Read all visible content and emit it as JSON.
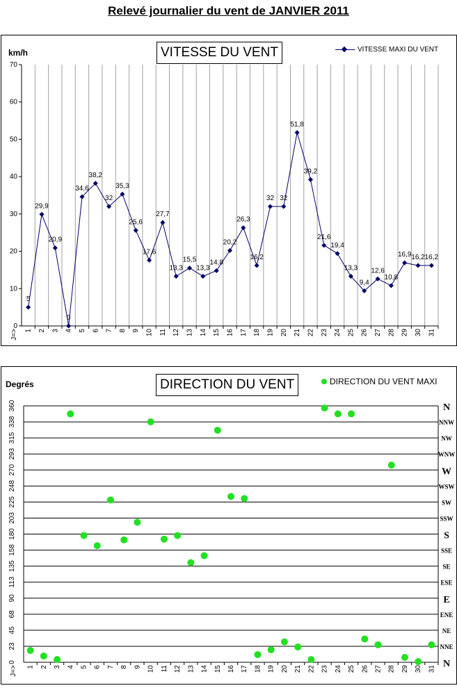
{
  "page": {
    "title": "Relevé journalier du vent de JANVIER 2011"
  },
  "speed_chart": {
    "title": "VITESSE DU VENT",
    "unit": "km/h",
    "legend": "VITESSE MAXI DU VENT",
    "x_axis_prefix": "J=>",
    "line_color": "#000066",
    "grid_color": "#a0a0a0"
  },
  "direction_chart": {
    "title": "DIRECTION DU VENT",
    "unit": "Degrés",
    "legend": "DIRECTION DU VENT MAXI",
    "x_axis_prefix": "J=>",
    "point_color": "#22e022",
    "grid_color": "#000000"
  },
  "chart_data": [
    {
      "type": "line",
      "title": "VITESSE DU VENT",
      "ylabel": "km/h",
      "xlabel": "J=>",
      "ylim": [
        0,
        70
      ],
      "yticks": [
        0,
        10,
        20,
        30,
        40,
        50,
        60,
        70
      ],
      "grid": "vertical",
      "legend_position": "top-right",
      "categories": [
        "1",
        "2",
        "3",
        "4",
        "5",
        "6",
        "7",
        "8",
        "9",
        "10",
        "11",
        "12",
        "13",
        "14",
        "15",
        "16",
        "17",
        "18",
        "19",
        "20",
        "21",
        "22",
        "23",
        "24",
        "25",
        "26",
        "27",
        "28",
        "29",
        "30",
        "31"
      ],
      "series": [
        {
          "name": "VITESSE MAXI DU VENT",
          "values": [
            5,
            29.9,
            20.9,
            0,
            34.6,
            38.2,
            32,
            35.3,
            25.6,
            17.6,
            27.7,
            13.3,
            15.5,
            13.3,
            14.8,
            20.2,
            26.3,
            16.2,
            32,
            32,
            51.8,
            39.2,
            21.6,
            19.4,
            13.3,
            9.4,
            12.6,
            10.8,
            16.9,
            16.2,
            16.2
          ],
          "labels": [
            "5",
            "29,9",
            "20,9",
            "0",
            "34,6",
            "38,2",
            "32",
            "35,3",
            "25,6",
            "17,6",
            "27,7",
            "13,3",
            "15,5",
            "13,3",
            "14,8",
            "20,2",
            "26,3",
            "16,2",
            "32",
            "32",
            "51,8",
            "39,2",
            "21,6",
            "19,4",
            "13,3",
            "9,4",
            "12,6",
            "10,8",
            "16,9",
            "16,2",
            "16,2"
          ]
        }
      ]
    },
    {
      "type": "scatter",
      "title": "DIRECTION DU VENT",
      "ylabel": "Degrés",
      "xlabel": "J=>",
      "ylim": [
        0,
        360
      ],
      "yticks": [
        0,
        23,
        45,
        68,
        90,
        113,
        135,
        158,
        180,
        203,
        225,
        248,
        270,
        293,
        315,
        338,
        360
      ],
      "direction_labels": [
        "N",
        "NNE",
        "NE",
        "ENE",
        "E",
        "ESE",
        "SE",
        "SSE",
        "S",
        "SSW",
        "SW",
        "WSW",
        "W",
        "WNW",
        "NW",
        "NNW",
        "N"
      ],
      "grid": "horizontal",
      "legend_position": "top-right",
      "categories": [
        "1",
        "2",
        "3",
        "4",
        "5",
        "6",
        "7",
        "8",
        "9",
        "10",
        "11",
        "12",
        "13",
        "14",
        "15",
        "16",
        "17",
        "18",
        "19",
        "20",
        "21",
        "22",
        "23",
        "24",
        "25",
        "26",
        "27",
        "28",
        "29",
        "30",
        "31"
      ],
      "series": [
        {
          "name": "DIRECTION DU VENT MAXI",
          "values": [
            17,
            9,
            4,
            349,
            178,
            164,
            228,
            172,
            197,
            338,
            173,
            178,
            140,
            150,
            326,
            233,
            230,
            11,
            18,
            29,
            22,
            4,
            357,
            349,
            349,
            33,
            25,
            277,
            7,
            1,
            25
          ]
        }
      ]
    }
  ]
}
